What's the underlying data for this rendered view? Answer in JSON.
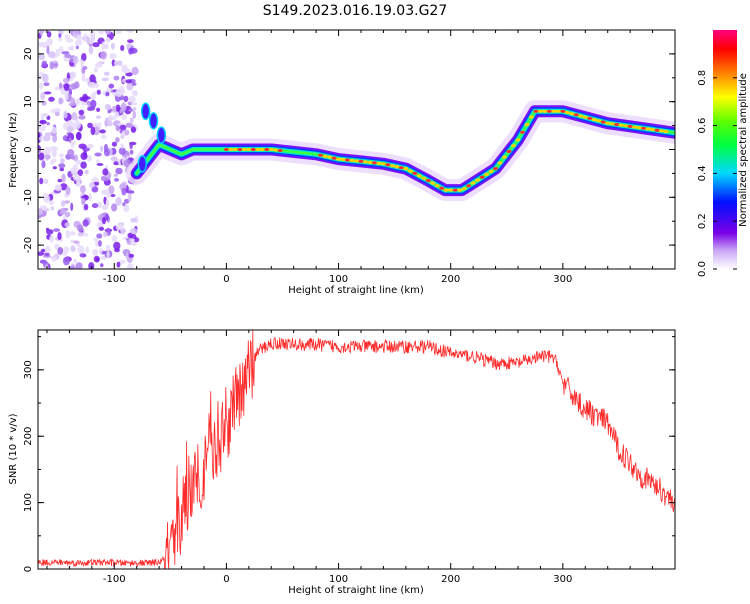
{
  "title": "S149.2023.016.19.03.G27",
  "colors": {
    "snr_line": "#ff2a2a",
    "axis": "#000000",
    "spectro_background": "#ffffff"
  },
  "chart_data": [
    {
      "type": "heatmap",
      "xlabel": "Height of straight line (km)",
      "ylabel": "Frequency (Hz)",
      "xlim": [
        -168,
        400
      ],
      "ylim": [
        -25,
        25
      ],
      "xticks": [
        "-100",
        "0",
        "100",
        "200",
        "300"
      ],
      "xtick_values": [
        -100,
        0,
        100,
        200,
        300
      ],
      "yticks": [
        "20",
        "10",
        "0",
        "-10",
        "-20"
      ],
      "ytick_values": [
        20,
        10,
        0,
        -10,
        -20
      ],
      "ridge": {
        "x": [
          -80,
          -70,
          -60,
          -50,
          -40,
          -30,
          -20,
          0,
          20,
          40,
          60,
          80,
          100,
          120,
          140,
          160,
          180,
          195,
          210,
          220,
          240,
          260,
          275,
          300,
          340,
          370,
          400
        ],
        "freq": [
          -5,
          -2,
          1,
          0,
          -1,
          0,
          0,
          0,
          0,
          0,
          -0.5,
          -1,
          -2,
          -2.5,
          -3,
          -4,
          -6.5,
          -8.5,
          -8.5,
          -7,
          -4,
          2,
          8,
          8,
          5.5,
          4.5,
          3.5
        ]
      },
      "noise_region_x": [
        -168,
        -80
      ],
      "colorbar": {
        "label": "Normalized spectral amplitude",
        "ticks": [
          "0.0",
          "0.2",
          "0.4",
          "0.6",
          "0.8"
        ],
        "tick_values": [
          0,
          0.2,
          0.4,
          0.6,
          0.8
        ],
        "range": [
          0,
          1
        ],
        "colormap": "rainbow (white-violet-blue-cyan-green-yellow-orange-red-pink)"
      }
    },
    {
      "type": "line",
      "xlabel": "Height of straight line (km)",
      "ylabel": "SNR (10 * v/v)",
      "xlim": [
        -168,
        400
      ],
      "ylim": [
        0,
        360
      ],
      "xticks": [
        "-100",
        "0",
        "100",
        "200",
        "300"
      ],
      "xtick_values": [
        -100,
        0,
        100,
        200,
        300
      ],
      "yticks": [
        "0",
        "100",
        "200",
        "300"
      ],
      "ytick_values": [
        0,
        100,
        200,
        300
      ],
      "series": [
        {
          "x": [
            -168,
            -150,
            -130,
            -110,
            -90,
            -70,
            -60,
            -50,
            -45,
            -40,
            -35,
            -30,
            -25,
            -20,
            -15,
            -10,
            -5,
            0,
            5,
            10,
            15,
            20,
            25,
            30,
            40,
            50,
            60,
            80,
            100,
            120,
            140,
            160,
            180,
            200,
            220,
            240,
            260,
            280,
            290,
            295,
            300,
            310,
            320,
            330,
            340,
            350,
            360,
            370,
            380,
            390,
            400
          ],
          "values": [
            10,
            10,
            9,
            10,
            9,
            9,
            10,
            20,
            40,
            80,
            110,
            130,
            150,
            150,
            180,
            190,
            200,
            220,
            240,
            250,
            260,
            290,
            320,
            330,
            340,
            340,
            338,
            338,
            335,
            335,
            335,
            335,
            335,
            325,
            320,
            310,
            310,
            320,
            320,
            310,
            280,
            260,
            240,
            230,
            220,
            180,
            160,
            140,
            130,
            115,
            100
          ]
        }
      ]
    }
  ]
}
